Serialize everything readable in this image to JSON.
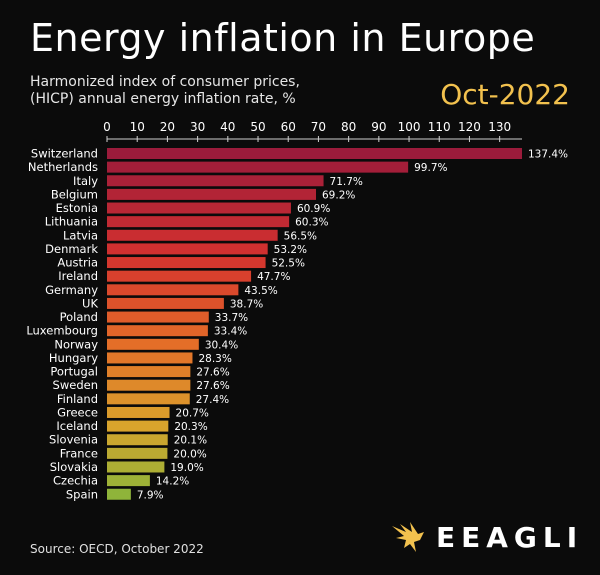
{
  "header": {
    "title": "Energy inflation in Europe",
    "subtitle_line1": "Harmonized index of consumer prices,",
    "subtitle_line2": "(HICP) annual energy inflation rate, %",
    "date": "Oct-2022"
  },
  "footer": {
    "source": "Source: OECD, October 2022",
    "logo_text": "EEAGLI",
    "logo_icon": "eagle-icon"
  },
  "chart_data": {
    "type": "bar",
    "orientation": "horizontal",
    "xlim": [
      0,
      137.4
    ],
    "xticks": [
      0,
      10,
      20,
      30,
      40,
      50,
      60,
      70,
      80,
      90,
      100,
      110,
      120,
      130
    ],
    "axis_position": "top",
    "grid": false,
    "categories": [
      "Switzerland",
      "Netherlands",
      "Italy",
      "Belgium",
      "Estonia",
      "Lithuania",
      "Latvia",
      "Denmark",
      "Austria",
      "Ireland",
      "Germany",
      "UK",
      "Poland",
      "Luxembourg",
      "Norway",
      "Hungary",
      "Portugal",
      "Sweden",
      "Finland",
      "Greece",
      "Iceland",
      "Slovenia",
      "France",
      "Slovakia",
      "Czechia",
      "Spain"
    ],
    "values": [
      137.4,
      99.7,
      71.7,
      69.2,
      60.9,
      60.3,
      56.5,
      53.2,
      52.5,
      47.7,
      43.5,
      38.7,
      33.7,
      33.4,
      30.4,
      28.3,
      27.6,
      27.6,
      27.4,
      20.7,
      20.3,
      20.1,
      20.0,
      19.0,
      14.2,
      7.9
    ],
    "labels": [
      "137.4%",
      "99.7%",
      "71.7%",
      "69.2%",
      "60.9%",
      "60.3%",
      "56.5%",
      "53.2%",
      "52.5%",
      "47.7%",
      "43.5%",
      "38.7%",
      "33.7%",
      "33.4%",
      "30.4%",
      "28.3%",
      "27.6%",
      "27.6%",
      "27.4%",
      "20.7%",
      "20.3%",
      "20.1%",
      "20.0%",
      "19.0%",
      "14.2%",
      "7.9%"
    ],
    "colors": {
      "high": "#9b1b3b",
      "mid_high": "#d4322f",
      "mid": "#e46c28",
      "mid_low": "#d9a42c",
      "low": "#8fb43a"
    }
  }
}
